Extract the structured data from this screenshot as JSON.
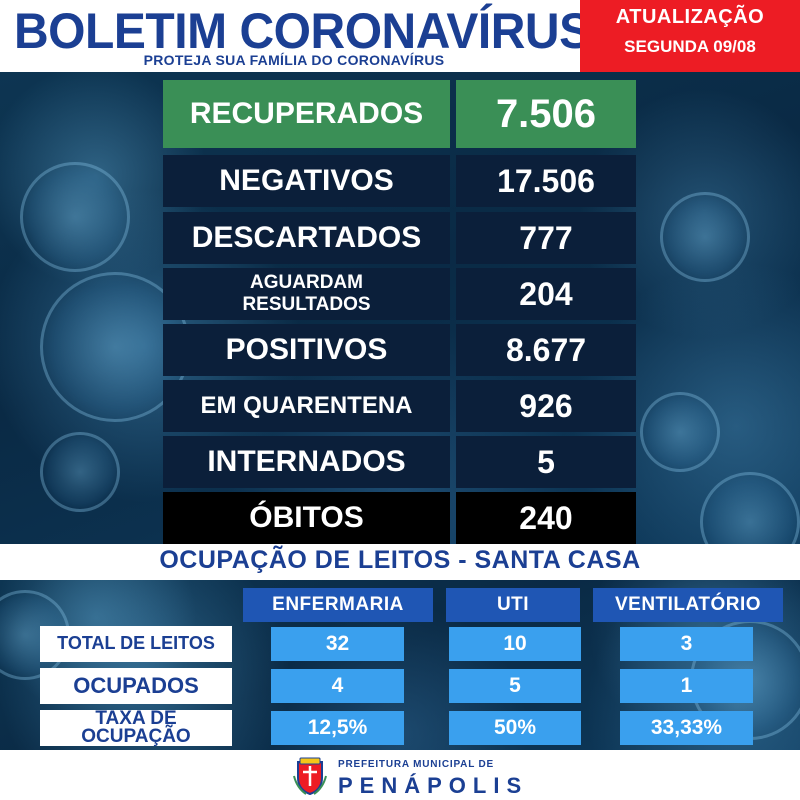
{
  "header": {
    "title": "BOLETIM CORONAVÍRUS",
    "subtitle": "PROTEJA SUA FAMÍLIA DO CORONAVÍRUS",
    "update_label": "ATUALIZAÇÃO",
    "update_date": "SEGUNDA 09/08"
  },
  "stats": [
    {
      "label": "RECUPERADOS",
      "value": "7.506"
    },
    {
      "label": "NEGATIVOS",
      "value": "17.506"
    },
    {
      "label": "DESCARTADOS",
      "value": "777"
    },
    {
      "label": "AGUARDAM RESULTADOS",
      "label_line1": "AGUARDAM",
      "label_line2": "RESULTADOS",
      "value": "204"
    },
    {
      "label": "POSITIVOS",
      "value": "8.677"
    },
    {
      "label": "EM QUARENTENA",
      "value": "926"
    },
    {
      "label": "INTERNADOS",
      "value": "5"
    },
    {
      "label": "ÓBITOS",
      "value": "240"
    }
  ],
  "beds": {
    "title": "OCUPAÇÃO DE LEITOS - SANTA CASA",
    "columns": [
      "ENFERMARIA",
      "UTI",
      "VENTILATÓRIO"
    ],
    "rows": [
      {
        "label": "TOTAL DE LEITOS",
        "values": [
          "32",
          "10",
          "3"
        ]
      },
      {
        "label": "OCUPADOS",
        "values": [
          "4",
          "5",
          "1"
        ]
      },
      {
        "label": "TAXA DE OCUPAÇÃO",
        "label_line1": "TAXA DE",
        "label_line2": "OCUPAÇÃO",
        "values": [
          "12,5%",
          "50%",
          "33,33%"
        ]
      }
    ]
  },
  "footer": {
    "small": "PREFEITURA MUNICIPAL DE",
    "big": "PENÁPOLIS"
  },
  "colors": {
    "brand_blue": "#1b3f93",
    "alert_red": "#ed1c24",
    "recovered_green": "#3a8f56",
    "row_navy": "#0b1f3a",
    "cell_blue": "#3aa0ee",
    "header_blue": "#1f56b4"
  }
}
